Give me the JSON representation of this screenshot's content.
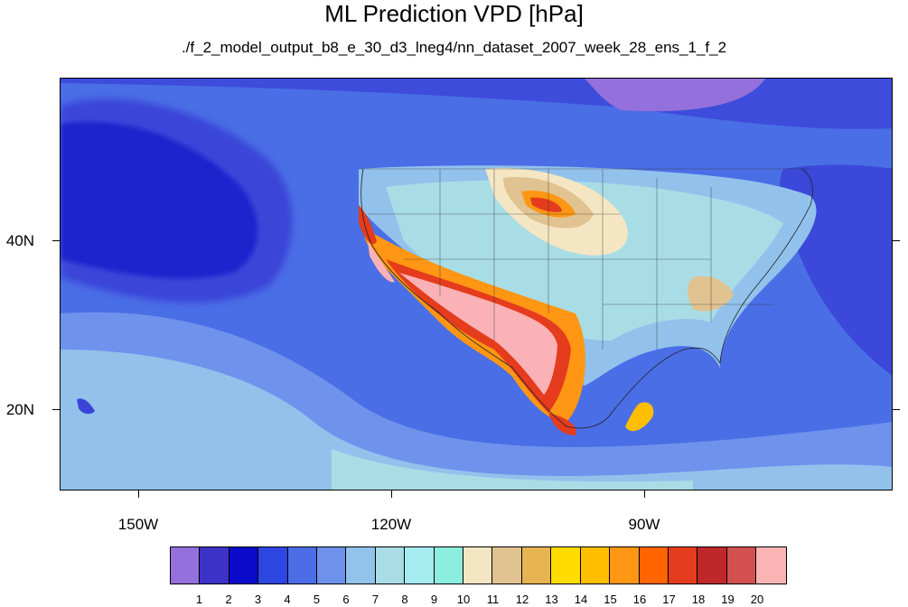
{
  "title": "ML Prediction VPD [hPa]",
  "subtitle": "./f_2_model_output_b8_e_30_d3_lneg4/nn_dataset_2007_week_28_ens_1_f_2",
  "map": {
    "lat_labels": [
      "40N",
      "20N"
    ],
    "lon_labels": [
      "150W",
      "120W",
      "90W"
    ],
    "colors": {
      "deep_ocean": "#0c0fc8",
      "ocean_dark": "#3a44d8",
      "ocean_mid": "#4a6ee6",
      "ocean_light": "#6f92ec",
      "ocean_pale": "#92c2ec",
      "coastal": "#a9dde6",
      "cyan": "#a8e8f0",
      "land_green": "#8ceee0",
      "hot_pink": "#fab2b6",
      "hot_red": "#e43c1c"
    }
  },
  "colorbar": {
    "labels": [
      "1",
      "2",
      "3",
      "4",
      "5",
      "6",
      "7",
      "8",
      "9",
      "10",
      "11",
      "12",
      "13",
      "14",
      "15",
      "16",
      "17",
      "18",
      "19",
      "20"
    ],
    "colors": [
      "#9370db",
      "#3c32c8",
      "#0a0ac8",
      "#2d46e1",
      "#4b6ee6",
      "#6e91eb",
      "#91c3eb",
      "#aadce6",
      "#a5ebf0",
      "#8ceede",
      "#f5e6c3",
      "#e0c391",
      "#e6b450",
      "#ffdc00",
      "#ffbe00",
      "#ff9614",
      "#ff6400",
      "#e63c1e",
      "#be2828",
      "#d25050",
      "#fab4b4"
    ]
  }
}
